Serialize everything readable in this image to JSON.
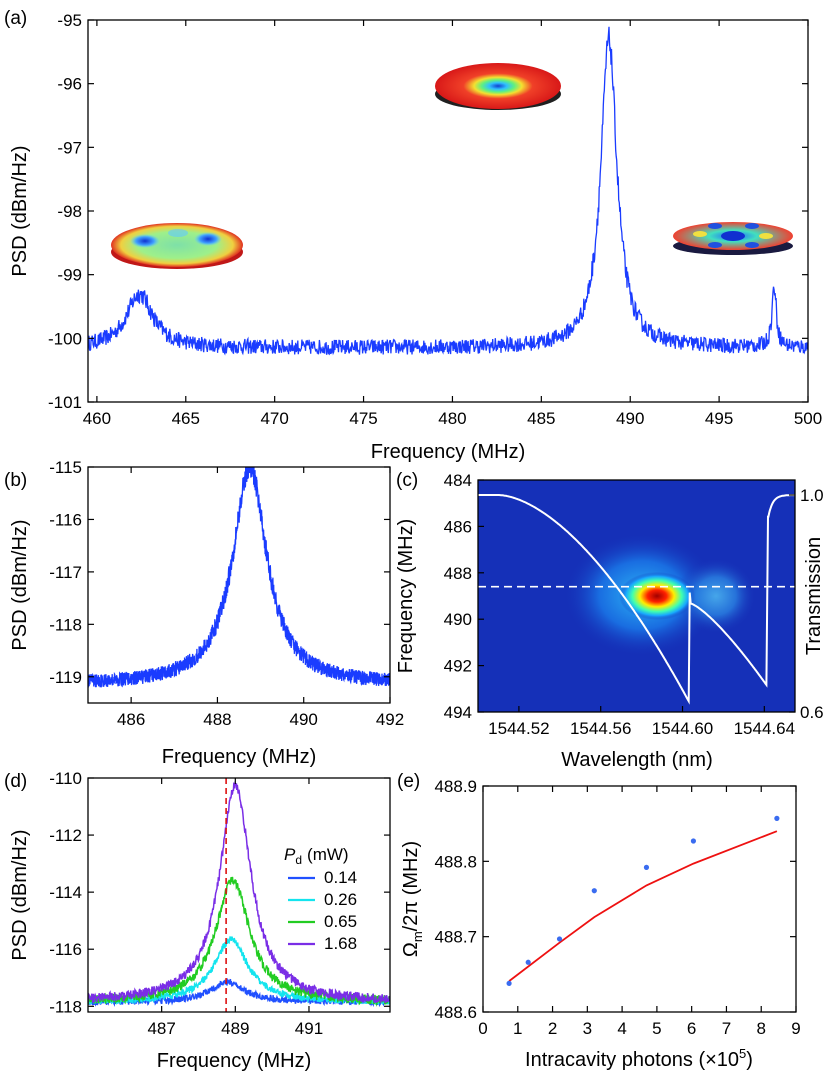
{
  "panels": {
    "a": {
      "label": "(a)"
    },
    "b": {
      "label": "(b)"
    },
    "c": {
      "label": "(c)"
    },
    "d": {
      "label": "(d)"
    },
    "e": {
      "label": "(e)"
    }
  },
  "colors": {
    "spectrum": "#1a3cff",
    "fit": "#ee1111",
    "dots": "#3a6cf0",
    "legend": [
      "#2050ff",
      "#14e4ee",
      "#22cc22",
      "#7a2ee6"
    ],
    "dashed": "#dd1111",
    "map_bg": "#1530b8"
  },
  "chart_data": [
    {
      "panel": "a",
      "type": "line",
      "xlabel": "Frequency (MHz)",
      "ylabel": "PSD (dBm/Hz)",
      "xlim": [
        459.5,
        500
      ],
      "ylim": [
        -101,
        -95
      ],
      "xticks": [
        "460",
        "465",
        "470",
        "475",
        "480",
        "485",
        "490",
        "495",
        "500"
      ],
      "yticks": [
        "-95",
        "-96",
        "-97",
        "-98",
        "-99",
        "-100",
        "-101"
      ],
      "baseline": -100.15,
      "noise": 0.12,
      "peaks": [
        {
          "f0": 462.4,
          "amp": 0.85,
          "hwhm": 0.9
        },
        {
          "f0": 488.8,
          "amp": 4.85,
          "hwhm": 0.55
        },
        {
          "f0": 498.1,
          "amp": 0.95,
          "hwhm": 0.15
        }
      ],
      "insets": [
        "disk-mode-left",
        "disk-mode-center",
        "disk-mode-right"
      ]
    },
    {
      "panel": "b",
      "type": "line",
      "xlabel": "Frequency (MHz)",
      "ylabel": "PSD (dBm/Hz)",
      "xlim": [
        485,
        492
      ],
      "ylim": [
        -119.5,
        -115
      ],
      "xticks": [
        "486",
        "488",
        "490",
        "492"
      ],
      "yticks": [
        "-115",
        "-116",
        "-117",
        "-118",
        "-119"
      ],
      "baseline": -119.15,
      "noise": 0.13,
      "peaks": [
        {
          "f0": 488.75,
          "amp": 4.15,
          "hwhm": 0.48
        }
      ]
    },
    {
      "panel": "c",
      "type": "heatmap",
      "xlabel": "Wavelength (nm)",
      "ylabel": "Frequency (MHz)",
      "y2label": "Transmission",
      "xlim": [
        1544.5,
        1544.655
      ],
      "ylim": [
        484,
        494
      ],
      "xticks": [
        "1544.52",
        "1544.56",
        "1544.60",
        "1544.64"
      ],
      "yticks": [
        "484",
        "486",
        "488",
        "490",
        "492",
        "494"
      ],
      "y2ticks": [
        "1.0",
        "0.6"
      ],
      "dashed_freq": 488.6,
      "hotspot": {
        "wavelength": 1544.59,
        "freq": 488.7
      }
    },
    {
      "panel": "d",
      "type": "line",
      "xlabel": "Frequency (MHz)",
      "ylabel": "PSD (dBm/Hz)",
      "xlim": [
        485,
        493.2
      ],
      "ylim": [
        -118.2,
        -110
      ],
      "xticks": [
        "487",
        "489",
        "491"
      ],
      "yticks": [
        "-110",
        "-112",
        "-114",
        "-116",
        "-118"
      ],
      "legend_title_sym": "P",
      "legend_title_sub": "d",
      "legend_title_unit": "(mW)",
      "vline": 488.75,
      "series": [
        {
          "name": "0.14",
          "f0": 488.8,
          "amp": 0.7,
          "hwhm": 0.55
        },
        {
          "name": "0.26",
          "f0": 488.88,
          "amp": 2.2,
          "hwhm": 0.55
        },
        {
          "name": "0.65",
          "f0": 488.93,
          "amp": 4.3,
          "hwhm": 0.55
        },
        {
          "name": "1.68",
          "f0": 489.0,
          "amp": 7.6,
          "hwhm": 0.52
        }
      ],
      "baseline": -117.85,
      "noise": 0.12
    },
    {
      "panel": "e",
      "type": "scatter",
      "xlabel": "Intracavity photons (×10",
      "xlabel_sup": "5",
      "xlabel_end": ")",
      "ylabel_prefix": "Ω",
      "ylabel_sub": "m",
      "ylabel_rest": "/2π (MHz)",
      "xlim": [
        0,
        9
      ],
      "ylim": [
        488.6,
        488.9
      ],
      "xticks": [
        "0",
        "1",
        "2",
        "3",
        "4",
        "5",
        "6",
        "7",
        "8",
        "9"
      ],
      "yticks": [
        "488.9",
        "488.8",
        "488.7",
        "488.6"
      ],
      "points": [
        [
          0.75,
          488.638
        ],
        [
          1.3,
          488.666
        ],
        [
          2.2,
          488.697
        ],
        [
          3.2,
          488.761
        ],
        [
          4.7,
          488.792
        ],
        [
          6.05,
          488.827
        ],
        [
          8.45,
          488.857
        ]
      ],
      "fit": [
        [
          0.75,
          488.641
        ],
        [
          2.2,
          488.692
        ],
        [
          3.2,
          488.726
        ],
        [
          4.7,
          488.768
        ],
        [
          6.05,
          488.797
        ],
        [
          8.45,
          488.84
        ]
      ]
    }
  ]
}
